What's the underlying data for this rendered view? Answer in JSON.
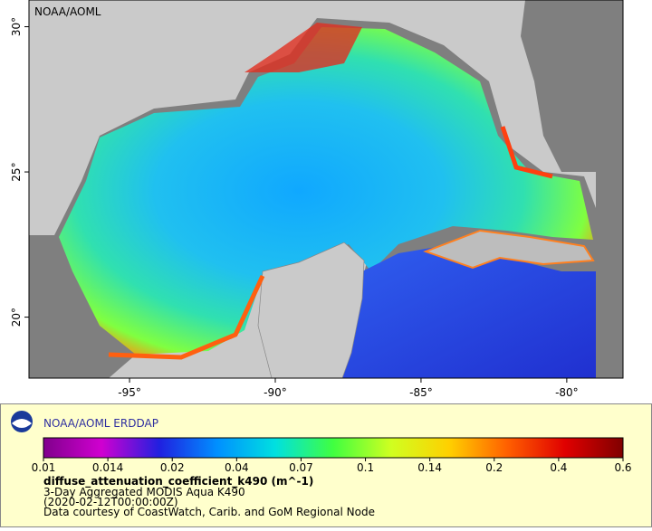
{
  "map": {
    "watermark": "NOAA/AOML",
    "xlim": [
      -98.45,
      -78.07
    ],
    "ylim": [
      17.9,
      30.92
    ],
    "lon_ticks": [
      {
        "value": -95,
        "label": "-95°"
      },
      {
        "value": -90,
        "label": "-90°"
      },
      {
        "value": -85,
        "label": "-85°"
      },
      {
        "value": -80,
        "label": "-80°"
      }
    ],
    "lat_ticks": [
      {
        "value": 20,
        "label": "20°"
      },
      {
        "value": 25,
        "label": "25°"
      },
      {
        "value": 30,
        "label": "30°"
      }
    ]
  },
  "legend": {
    "title": "NOAA/AOML ERDDAP",
    "colorbar_ticks": [
      0.01,
      0.014,
      0.02,
      0.04,
      0.07,
      0.1,
      0.14,
      0.2,
      0.4,
      0.6
    ],
    "colors": [
      "#80008c",
      "#d000d0",
      "#2020e0",
      "#0090ff",
      "#00e0e0",
      "#40ff40",
      "#d0ff20",
      "#ffd000",
      "#ff6000",
      "#e00000",
      "#800000"
    ],
    "variable": "diffuse_attenuation_coefficient_k490 (m^-1)",
    "lines": [
      "3-Day Aggregated MODIS Aqua K490",
      "(2020-02-12T00:00:00Z)",
      "Data courtesy of CoastWatch, Carib. and GoM Regional Node"
    ]
  }
}
